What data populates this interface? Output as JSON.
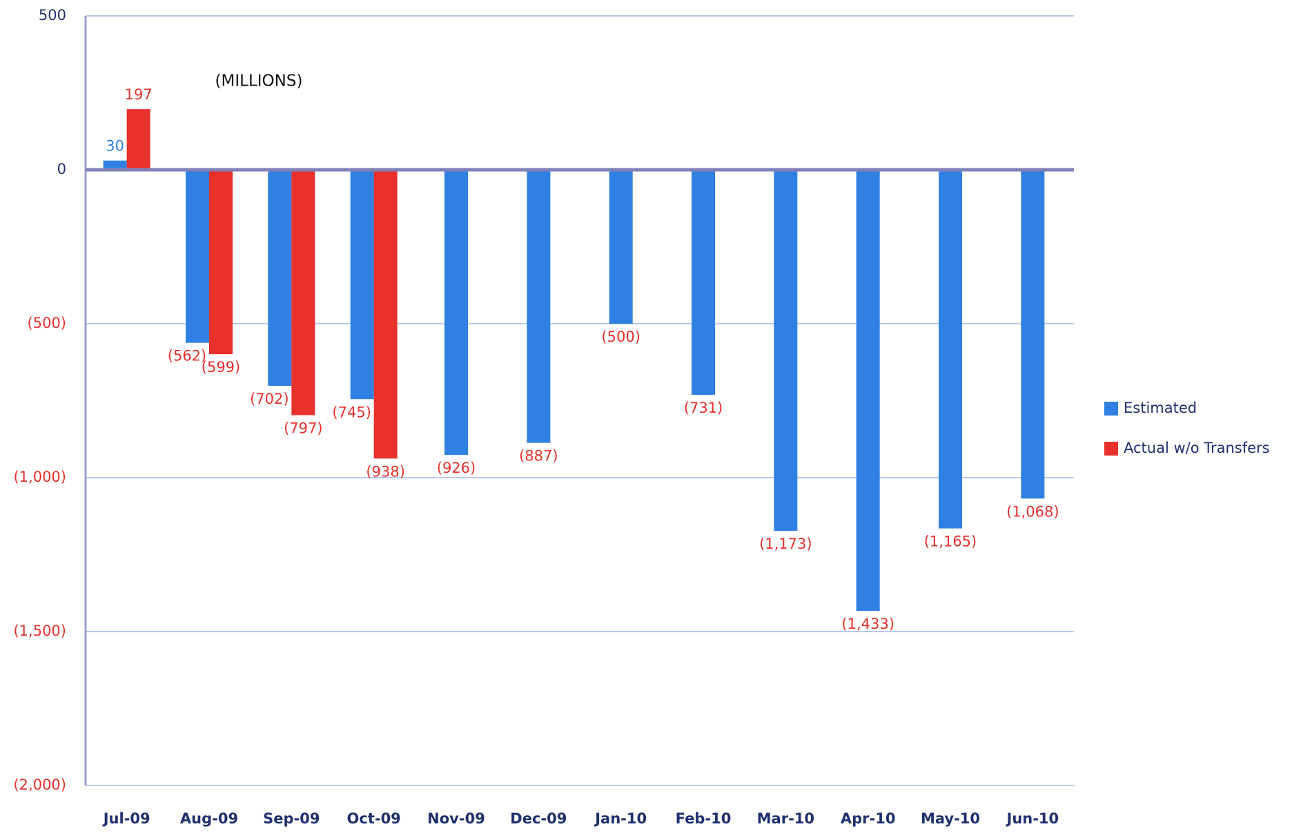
{
  "chart_data": {
    "type": "bar",
    "annotation": "(MILLIONS)",
    "categories": [
      "Jul-09",
      "Aug-09",
      "Sep-09",
      "Oct-09",
      "Nov-09",
      "Dec-09",
      "Jan-10",
      "Feb-10",
      "Mar-10",
      "Apr-10",
      "May-10",
      "Jun-10"
    ],
    "series": [
      {
        "name": "Estimated",
        "color": "#2f80e2",
        "values": [
          30,
          -562,
          -702,
          -745,
          -926,
          -887,
          -500,
          -731,
          -1173,
          -1433,
          -1165,
          -1068
        ],
        "value_labels": [
          "30",
          "(562)",
          "(702)",
          "(745)",
          "(926)",
          "(887)",
          "(500)",
          "(731)",
          "(1,173)",
          "(1,433)",
          "(1,165)",
          "(1,068)"
        ]
      },
      {
        "name": "Actual w/o Transfers",
        "color": "#e8302c",
        "values": [
          197,
          -599,
          -797,
          -938,
          null,
          null,
          null,
          null,
          null,
          null,
          null,
          null
        ],
        "value_labels": [
          "197",
          "(599)",
          "(797)",
          "(938)",
          null,
          null,
          null,
          null,
          null,
          null,
          null,
          null
        ]
      }
    ],
    "ylim": [
      -2000,
      500
    ],
    "yticks": [
      500,
      0,
      {
        "value": -500,
        "label": "(500)"
      },
      {
        "value": -1000,
        "label": "(1,000)"
      },
      {
        "value": -1500,
        "label": "(1,500)"
      },
      {
        "value": -2000,
        "label": "(2,000)"
      }
    ],
    "grid": true,
    "legend": "right"
  }
}
